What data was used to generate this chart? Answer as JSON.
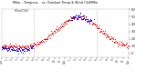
{
  "title": "Milw... Tempera... vs. Outdoor Temp & Wind Chill/Min",
  "bg_color": "#ffffff",
  "plot_bg": "#ffffff",
  "text_color": "#000000",
  "grid_color": "#cccccc",
  "temp_color": "#ff0000",
  "windchill_color": "#0000ff",
  "ylim": [
    -5,
    60
  ],
  "yticks": [
    0,
    10,
    20,
    30,
    40,
    50,
    60
  ],
  "figsize": [
    1.6,
    0.87
  ],
  "dpi": 100,
  "n_points": 288,
  "vline1": 72,
  "vline2": 216,
  "temp_seed": 42
}
